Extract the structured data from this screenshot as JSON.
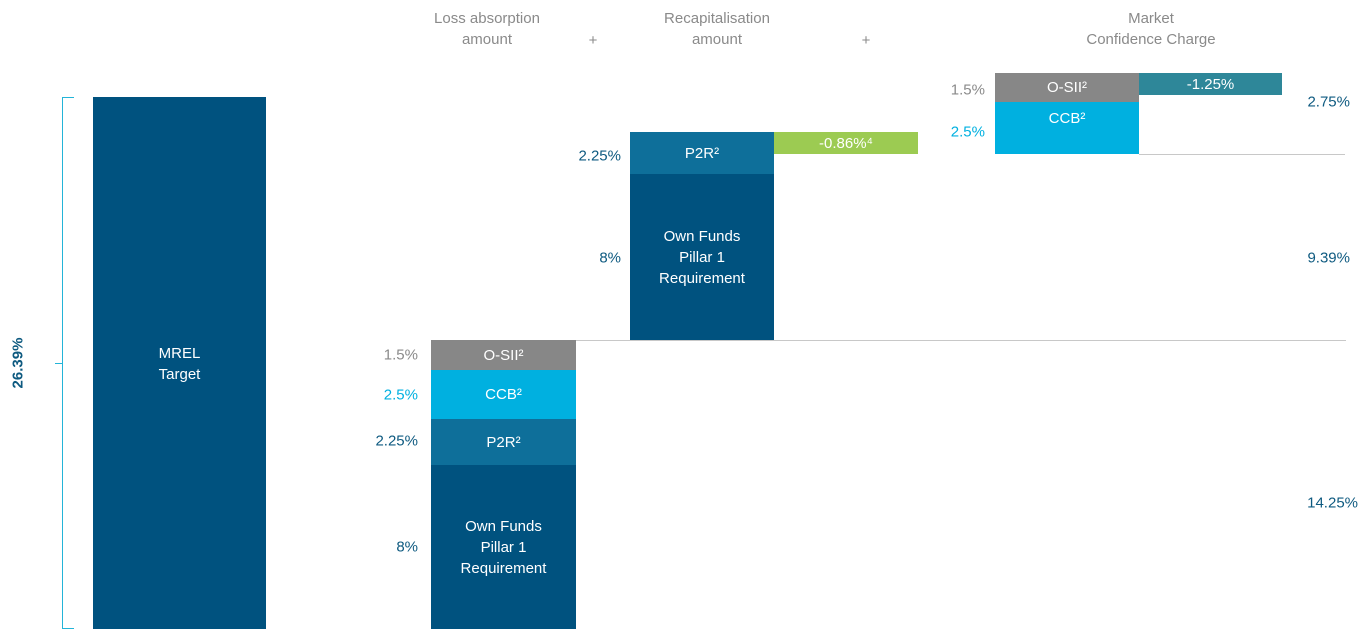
{
  "header": {
    "loss_absorption": "Loss absorption\namount",
    "plus_1": "+",
    "recapitalisation": "Recapitalisation\namount",
    "plus_2": "+",
    "market_confidence": "Market\nConfidence Charge"
  },
  "total": {
    "label": "26.39%"
  },
  "mrel": {
    "label": "MREL\nTarget"
  },
  "loss_absorption": {
    "blocks": [
      {
        "label": "O-SII²",
        "value": "1.5%"
      },
      {
        "label": "CCB²",
        "value": "2.5%"
      },
      {
        "label": "P2R²",
        "value": "2.25%"
      },
      {
        "label": "Own Funds\nPillar 1\nRequirement",
        "value": "8%"
      }
    ]
  },
  "recapitalisation": {
    "blocks": [
      {
        "label": "P2R²",
        "value": "2.25%"
      },
      {
        "label": "Own Funds\nPillar 1\nRequirement",
        "value": "8%"
      }
    ],
    "adjustment": "-0.86%⁴"
  },
  "market_confidence": {
    "blocks": [
      {
        "label": "O-SII²",
        "value": "1.5%"
      },
      {
        "label": "CCB²",
        "value": "2.5%"
      }
    ],
    "adjustment": "-1.25%"
  },
  "totals": [
    "2.75%",
    "9.39%",
    "14.25%"
  ]
}
